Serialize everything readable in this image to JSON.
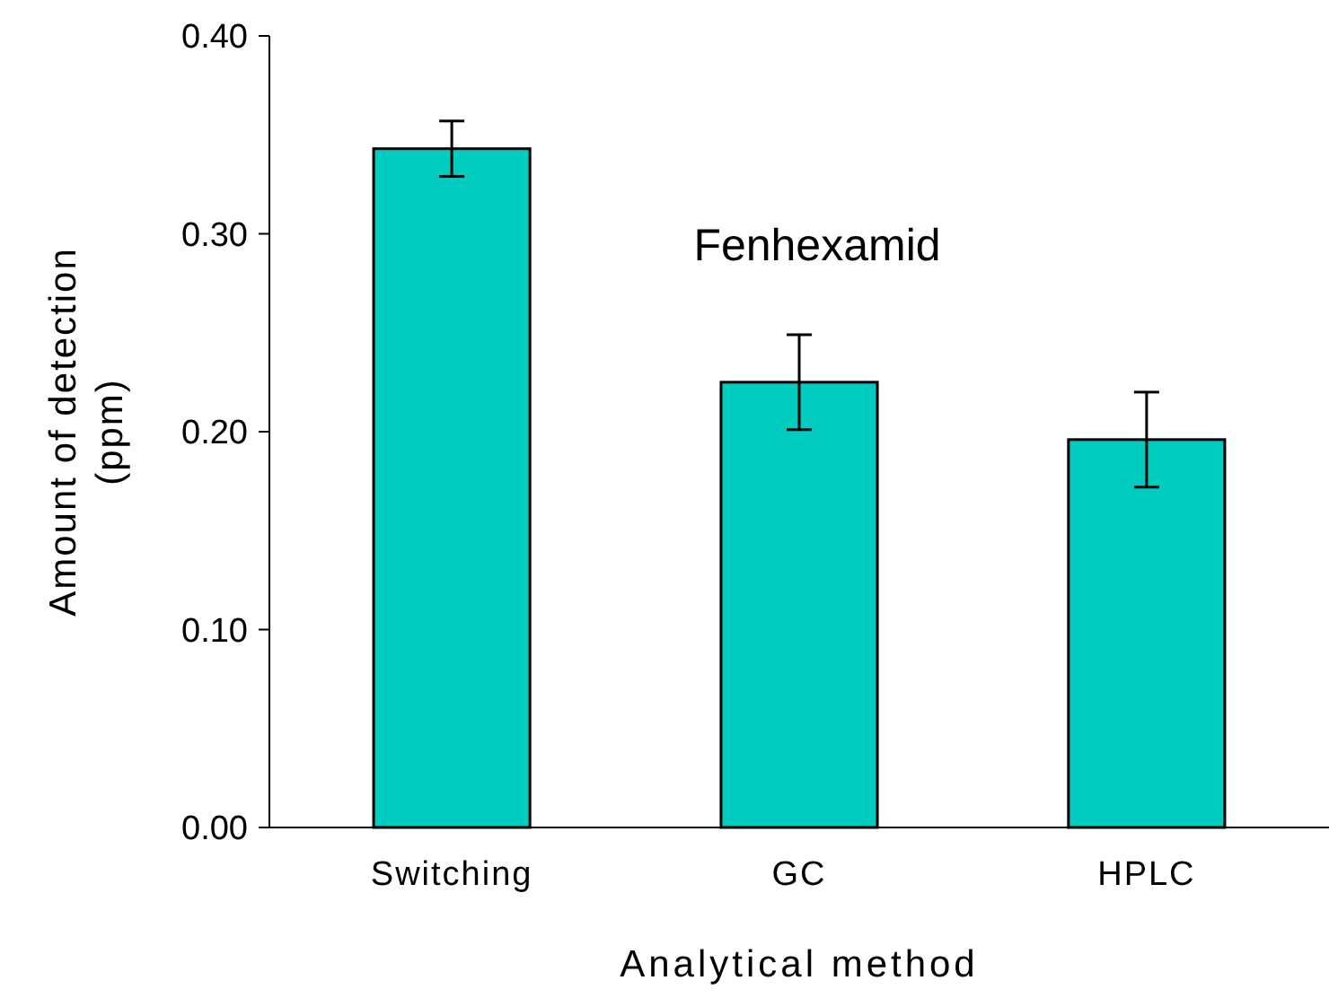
{
  "chart_data": {
    "type": "bar",
    "xlabel": "Analytical method",
    "ylabel": "Amount of detection\n(ppm)",
    "categories": [
      "Switching",
      "GC",
      "HPLC"
    ],
    "values": [
      0.343,
      0.225,
      0.196
    ],
    "errors": [
      0.014,
      0.024,
      0.024
    ],
    "color": "#00cdc0",
    "ylim": [
      0,
      0.4
    ],
    "yticks": [
      {
        "value": 0,
        "label": "0.00"
      },
      {
        "value": 0.1,
        "label": "0.10"
      },
      {
        "value": 0.2,
        "label": "0.20"
      },
      {
        "value": 0.3,
        "label": "0.30"
      },
      {
        "value": 0.4,
        "label": "0.40"
      }
    ],
    "annotations": [
      "Fenhexamid"
    ],
    "grid": false
  }
}
